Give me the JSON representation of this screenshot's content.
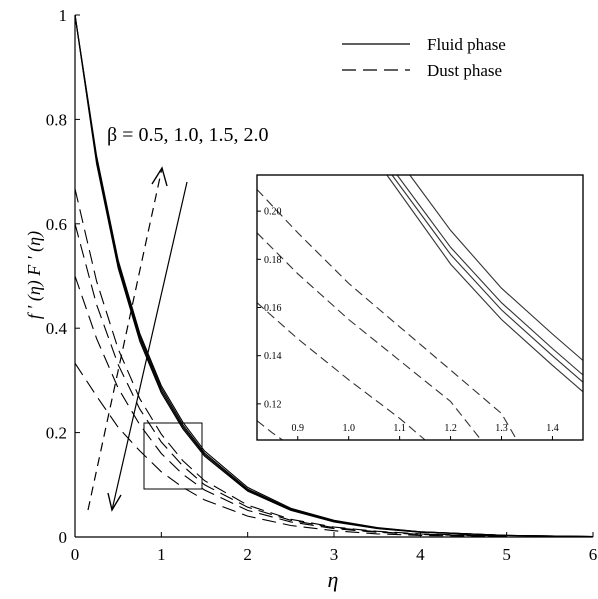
{
  "chart_data": [
    {
      "type": "line",
      "title": "",
      "xlabel": "η",
      "ylabel": "f ′ (η) F ′ (η)",
      "xlim": [
        0,
        6
      ],
      "ylim": [
        0,
        1
      ],
      "x_ticks": [
        "0",
        "1",
        "2",
        "3",
        "4",
        "5",
        "6"
      ],
      "y_ticks": [
        "0",
        "0.2",
        "0.4",
        "0.6",
        "0.8",
        "1"
      ],
      "grid": false,
      "legend_position": "top-right",
      "legend": [
        {
          "label": "Fluid phase",
          "style": "solid"
        },
        {
          "label": "Dust phase",
          "style": "dashed"
        }
      ],
      "annotation": "β = 0.5, 1.0, 1.5, 2.0",
      "series": [
        {
          "phase": "fluid",
          "beta": 0.5,
          "x": [
            0,
            0.25,
            0.5,
            0.75,
            1.0,
            1.25,
            1.5,
            2.0,
            2.5,
            3.0,
            3.5,
            4.0,
            5.0,
            6.0
          ],
          "y": [
            1.0,
            0.73,
            0.53,
            0.39,
            0.29,
            0.22,
            0.165,
            0.095,
            0.055,
            0.032,
            0.018,
            0.01,
            0.003,
            0.001
          ]
        },
        {
          "phase": "fluid",
          "beta": 1.0,
          "x": [
            0,
            0.25,
            0.5,
            0.75,
            1.0,
            1.25,
            1.5,
            2.0,
            2.5,
            3.0,
            3.5,
            4.0,
            5.0,
            6.0
          ],
          "y": [
            1.0,
            0.725,
            0.525,
            0.385,
            0.285,
            0.215,
            0.161,
            0.092,
            0.053,
            0.031,
            0.017,
            0.01,
            0.003,
            0.001
          ]
        },
        {
          "phase": "fluid",
          "beta": 1.5,
          "x": [
            0,
            0.25,
            0.5,
            0.75,
            1.0,
            1.25,
            1.5,
            2.0,
            2.5,
            3.0,
            3.5,
            4.0,
            5.0,
            6.0
          ],
          "y": [
            1.0,
            0.72,
            0.52,
            0.38,
            0.28,
            0.211,
            0.158,
            0.09,
            0.052,
            0.03,
            0.017,
            0.01,
            0.003,
            0.001
          ]
        },
        {
          "phase": "fluid",
          "beta": 2.0,
          "x": [
            0,
            0.25,
            0.5,
            0.75,
            1.0,
            1.25,
            1.5,
            2.0,
            2.5,
            3.0,
            3.5,
            4.0,
            5.0,
            6.0
          ],
          "y": [
            1.0,
            0.715,
            0.515,
            0.375,
            0.276,
            0.207,
            0.155,
            0.088,
            0.051,
            0.029,
            0.016,
            0.009,
            0.003,
            0.001
          ]
        },
        {
          "phase": "dust",
          "beta": 0.5,
          "x": [
            0,
            0.25,
            0.5,
            0.75,
            1.0,
            1.25,
            1.5,
            2.0,
            2.5,
            3.0,
            3.5,
            4.0,
            5.0
          ],
          "y": [
            0.333,
            0.27,
            0.21,
            0.165,
            0.125,
            0.095,
            0.071,
            0.04,
            0.022,
            0.012,
            0.006,
            0.003,
            0.001
          ]
        },
        {
          "phase": "dust",
          "beta": 1.0,
          "x": [
            0,
            0.25,
            0.5,
            0.75,
            1.0,
            1.25,
            1.5,
            2.0,
            2.5,
            3.0,
            3.5,
            4.0,
            5.0
          ],
          "y": [
            0.5,
            0.38,
            0.285,
            0.215,
            0.16,
            0.12,
            0.09,
            0.051,
            0.029,
            0.016,
            0.009,
            0.005,
            0.001
          ]
        },
        {
          "phase": "dust",
          "beta": 1.5,
          "x": [
            0,
            0.25,
            0.5,
            0.75,
            1.0,
            1.25,
            1.5,
            2.0,
            2.5,
            3.0,
            3.5,
            4.0,
            5.0
          ],
          "y": [
            0.6,
            0.445,
            0.33,
            0.245,
            0.182,
            0.136,
            0.1,
            0.057,
            0.032,
            0.018,
            0.01,
            0.005,
            0.002
          ]
        },
        {
          "phase": "dust",
          "beta": 2.0,
          "x": [
            0,
            0.25,
            0.5,
            0.75,
            1.0,
            1.25,
            1.5,
            2.0,
            2.5,
            3.0,
            3.5,
            4.0,
            5.0
          ],
          "y": [
            0.667,
            0.49,
            0.36,
            0.265,
            0.197,
            0.146,
            0.108,
            0.061,
            0.034,
            0.019,
            0.011,
            0.006,
            0.002
          ]
        }
      ]
    },
    {
      "type": "line",
      "title": "",
      "xlim": [
        0.82,
        1.46
      ],
      "ylim": [
        0.105,
        0.215
      ],
      "x_ticks": [
        "0.9",
        "1.0",
        "1.1",
        "1.2",
        "1.3",
        "1.4"
      ],
      "y_ticks": [
        "0.12",
        "0.14",
        "0.16",
        "0.18",
        "0.20"
      ],
      "grid": false,
      "series": [
        {
          "phase": "fluid",
          "beta": 0.5,
          "x": [
            1.12,
            1.2,
            1.3,
            1.4,
            1.46
          ],
          "y": [
            0.215,
            0.192,
            0.168,
            0.149,
            0.138
          ]
        },
        {
          "phase": "fluid",
          "beta": 1.0,
          "x": [
            1.095,
            1.2,
            1.3,
            1.4,
            1.46
          ],
          "y": [
            0.215,
            0.185,
            0.162,
            0.143,
            0.132
          ]
        },
        {
          "phase": "fluid",
          "beta": 1.5,
          "x": [
            1.085,
            1.2,
            1.3,
            1.4,
            1.46
          ],
          "y": [
            0.215,
            0.182,
            0.159,
            0.14,
            0.129
          ]
        },
        {
          "phase": "fluid",
          "beta": 2.0,
          "x": [
            1.075,
            1.2,
            1.3,
            1.4,
            1.46
          ],
          "y": [
            0.215,
            0.178,
            0.155,
            0.136,
            0.125
          ]
        },
        {
          "phase": "dust",
          "beta": 0.5,
          "x": [
            0.82,
            0.85,
            0.87
          ],
          "y": [
            0.113,
            0.108,
            0.105
          ]
        },
        {
          "phase": "dust",
          "beta": 1.0,
          "x": [
            0.82,
            0.9,
            1.0,
            1.1,
            1.15
          ],
          "y": [
            0.162,
            0.147,
            0.13,
            0.114,
            0.105
          ]
        },
        {
          "phase": "dust",
          "beta": 1.5,
          "x": [
            0.82,
            0.9,
            1.0,
            1.1,
            1.2,
            1.26
          ],
          "y": [
            0.191,
            0.174,
            0.155,
            0.138,
            0.121,
            0.105
          ]
        },
        {
          "phase": "dust",
          "beta": 2.0,
          "x": [
            0.82,
            0.9,
            1.0,
            1.1,
            1.2,
            1.3,
            1.33
          ],
          "y": [
            0.209,
            0.191,
            0.17,
            0.152,
            0.134,
            0.116,
            0.105
          ]
        }
      ]
    }
  ]
}
